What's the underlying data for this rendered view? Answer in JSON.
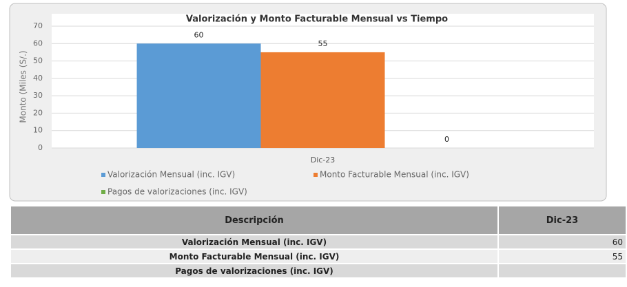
{
  "chart_data": {
    "type": "bar",
    "title": "Valorización y Monto Facturable Mensual vs Tiempo",
    "y_label": "Monto (Miles (S/.)",
    "categories": [
      "Dic-23"
    ],
    "series": [
      {
        "name": "Valorización Mensual (inc. IGV)",
        "color": "#5b9bd5",
        "values": [
          60
        ]
      },
      {
        "name": "Monto Facturable Mensual (inc. IGV)",
        "color": "#ed7d31",
        "values": [
          55
        ]
      },
      {
        "name": "Pagos de valorizaciones (inc. IGV)",
        "color": "#70ad47",
        "values": [
          0
        ]
      }
    ],
    "ylim": [
      0,
      70
    ],
    "yticks": [
      0,
      10,
      20,
      30,
      40,
      50,
      60,
      70
    ],
    "grid": true
  },
  "table": {
    "header": [
      "Descripción",
      "Dic-23"
    ],
    "rows": [
      [
        "Valorización Mensual (inc. IGV)",
        "60"
      ],
      [
        "Monto Facturable Mensual (inc. IGV)",
        "55"
      ],
      [
        "Pagos de valorizaciones (inc. IGV)"
      ]
    ]
  }
}
